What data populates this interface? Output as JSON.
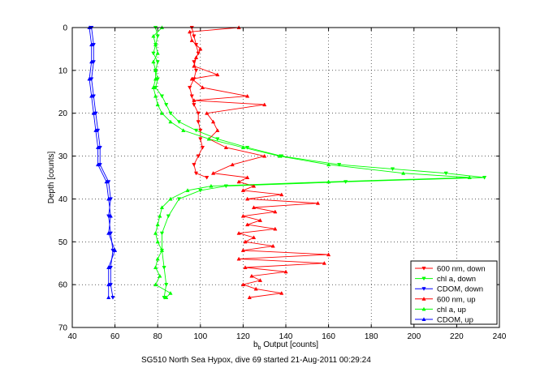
{
  "chart_data": {
    "type": "line",
    "xlabel_main": "b",
    "xlabel_sub": "b",
    "xlabel_rest": " Output [counts]",
    "ylabel": "Depth [counts]",
    "caption": "SG510 North Sea Hypox, dive 69 started 21-Aug-2011 00:29:24",
    "xlim": [
      40,
      240
    ],
    "ylim": [
      0,
      70
    ],
    "y_reversed": true,
    "grid": true,
    "legend_position": "lower-right",
    "x_ticks": [
      "40",
      "60",
      "80",
      "100",
      "120",
      "140",
      "160",
      "180",
      "200",
      "220",
      "240"
    ],
    "y_ticks": [
      "0",
      "10",
      "20",
      "30",
      "40",
      "50",
      "60",
      "70"
    ],
    "colors": {
      "red": "#ff0000",
      "green": "#00ff00",
      "blue": "#0000ff"
    },
    "series": [
      {
        "name": "600 nm, down",
        "color": "#ff0000",
        "marker": "triangle-down",
        "depth": [
          0,
          2,
          4,
          6,
          8,
          10,
          12,
          14,
          16,
          18,
          20,
          22,
          24,
          26,
          28,
          30,
          32,
          34,
          35
        ],
        "value": [
          96,
          97,
          98,
          99,
          97,
          98,
          97,
          95,
          96,
          97,
          99,
          99,
          100,
          100,
          101,
          99,
          97,
          98,
          103
        ]
      },
      {
        "name": "chl a, down",
        "color": "#00ff00",
        "marker": "triangle-down",
        "depth": [
          0,
          2,
          4,
          6,
          8,
          10,
          12,
          14,
          16,
          18,
          20,
          22,
          24,
          26,
          28,
          30,
          32,
          33,
          34,
          35,
          36,
          37,
          38,
          40,
          44,
          48,
          52,
          56,
          60,
          63
        ],
        "value": [
          79,
          80,
          79,
          78,
          80,
          79,
          80,
          79,
          82,
          84,
          86,
          90,
          98,
          108,
          122,
          138,
          165,
          190,
          215,
          233,
          168,
          112,
          100,
          90,
          85,
          82,
          82,
          83,
          84,
          83
        ]
      },
      {
        "name": "CDOM, down",
        "color": "#0000ff",
        "marker": "triangle-down",
        "depth": [
          0,
          4,
          8,
          12,
          16,
          20,
          24,
          28,
          32,
          36,
          40,
          44,
          48,
          52,
          56,
          60,
          63
        ],
        "value": [
          49,
          50,
          50,
          49,
          50,
          51,
          52,
          53,
          53,
          57,
          58,
          57,
          58,
          59,
          58,
          58,
          59
        ]
      },
      {
        "name": "600 nm, up",
        "color": "#ff0000",
        "marker": "triangle-up",
        "depth": [
          0,
          1,
          3,
          5,
          7,
          9,
          11,
          12,
          14,
          16,
          17,
          18,
          20,
          22,
          24,
          26,
          28,
          30,
          32,
          34,
          35,
          36,
          37,
          38,
          39,
          40,
          41,
          42,
          43,
          44,
          45,
          46,
          47,
          48,
          49,
          50,
          51,
          52,
          53,
          54,
          55,
          56,
          57,
          58,
          59,
          60,
          61,
          62,
          63
        ],
        "value": [
          118,
          95,
          96,
          100,
          98,
          97,
          108,
          96,
          101,
          122,
          97,
          130,
          103,
          106,
          108,
          104,
          112,
          130,
          115,
          106,
          122,
          118,
          125,
          120,
          138,
          122,
          155,
          125,
          135,
          120,
          128,
          122,
          135,
          118,
          125,
          121,
          134,
          120,
          160,
          118,
          158,
          121,
          140,
          124,
          128,
          120,
          126,
          138,
          123
        ]
      },
      {
        "name": "chl a, up",
        "color": "#00ff00",
        "marker": "triangle-up",
        "depth": [
          0,
          2,
          4,
          6,
          8,
          10,
          12,
          14,
          16,
          18,
          20,
          22,
          24,
          26,
          28,
          30,
          32,
          34,
          35,
          36,
          37,
          38,
          40,
          42,
          44,
          46,
          48,
          50,
          52,
          54,
          56,
          58,
          60,
          62,
          63
        ],
        "value": [
          82,
          78,
          79,
          80,
          78,
          79,
          79,
          78,
          79,
          80,
          82,
          86,
          92,
          104,
          120,
          137,
          160,
          195,
          226,
          160,
          105,
          94,
          86,
          82,
          81,
          80,
          79,
          80,
          82,
          80,
          79,
          81,
          79,
          86,
          84
        ]
      },
      {
        "name": "CDOM, up",
        "color": "#0000ff",
        "marker": "triangle-up",
        "depth": [
          0,
          4,
          8,
          12,
          16,
          20,
          24,
          28,
          32,
          36,
          40,
          44,
          48,
          52,
          56,
          60,
          63
        ],
        "value": [
          48,
          49,
          49,
          48,
          49,
          50,
          51,
          52,
          52,
          56,
          57,
          58,
          57,
          60,
          57,
          57,
          57
        ]
      }
    ]
  }
}
